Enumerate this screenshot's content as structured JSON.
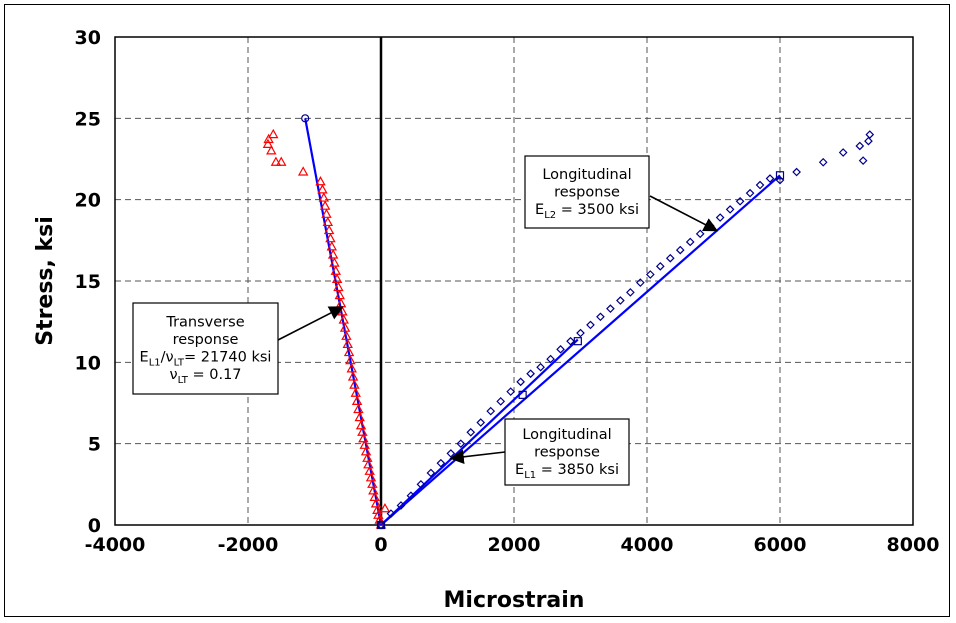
{
  "chart_data": {
    "type": "scatter",
    "xlabel": "Microstrain",
    "ylabel": "Stress, ksi",
    "xlim": [
      -4000,
      8000
    ],
    "ylim": [
      0,
      30
    ],
    "xticks": [
      "-4000",
      "-2000",
      "0",
      "2000",
      "4000",
      "6000",
      "8000"
    ],
    "yticks": [
      "0",
      "5",
      "10",
      "15",
      "20",
      "25",
      "30"
    ],
    "grid": true,
    "legend": "none",
    "colors": {
      "transverse": "#ff0000",
      "longitudinal": "#00008b",
      "fit": "#0000ff",
      "grid": "#555555"
    },
    "series": [
      {
        "marker": "triangle",
        "color": "#ff0000",
        "points": [
          [
            0,
            0
          ],
          [
            60,
            1.0
          ],
          [
            -20,
            0.3
          ],
          [
            -40,
            0.6
          ],
          [
            -55,
            0.9
          ],
          [
            -75,
            1.3
          ],
          [
            -95,
            1.7
          ],
          [
            -115,
            2.1
          ],
          [
            -130,
            2.5
          ],
          [
            -150,
            2.9
          ],
          [
            -170,
            3.3
          ],
          [
            -190,
            3.7
          ],
          [
            -205,
            4.1
          ],
          [
            -225,
            4.5
          ],
          [
            -245,
            4.9
          ],
          [
            -265,
            5.3
          ],
          [
            -280,
            5.7
          ],
          [
            -300,
            6.1
          ],
          [
            -320,
            6.6
          ],
          [
            -340,
            7.1
          ],
          [
            -360,
            7.6
          ],
          [
            -380,
            8.1
          ],
          [
            -400,
            8.6
          ],
          [
            -420,
            9.1
          ],
          [
            -440,
            9.6
          ],
          [
            -460,
            10.1
          ],
          [
            -480,
            10.6
          ],
          [
            -500,
            11.1
          ],
          [
            -520,
            11.6
          ],
          [
            -540,
            12.1
          ],
          [
            -560,
            12.6
          ],
          [
            -580,
            13.1
          ],
          [
            -600,
            13.6
          ],
          [
            -620,
            14.1
          ],
          [
            -640,
            14.6
          ],
          [
            -660,
            15.1
          ],
          [
            -680,
            15.6
          ],
          [
            -700,
            16.1
          ],
          [
            -720,
            16.6
          ],
          [
            -740,
            17.1
          ],
          [
            -760,
            17.6
          ],
          [
            -780,
            18.1
          ],
          [
            -800,
            18.6
          ],
          [
            -820,
            19.1
          ],
          [
            -840,
            19.6
          ],
          [
            -860,
            20.1
          ],
          [
            -880,
            20.6
          ],
          [
            -910,
            21.1
          ],
          [
            -1170,
            21.7
          ],
          [
            -1500,
            22.3
          ],
          [
            -1580,
            22.3
          ],
          [
            -1650,
            23.0
          ],
          [
            -1700,
            23.4
          ],
          [
            -1690,
            23.7
          ],
          [
            -1620,
            24.0
          ]
        ]
      },
      {
        "marker": "diamond",
        "color": "#00008b",
        "points": [
          [
            0,
            0
          ],
          [
            150,
            0.7
          ],
          [
            300,
            1.2
          ],
          [
            450,
            1.8
          ],
          [
            600,
            2.5
          ],
          [
            750,
            3.2
          ],
          [
            900,
            3.8
          ],
          [
            1050,
            4.4
          ],
          [
            1200,
            5.0
          ],
          [
            1350,
            5.7
          ],
          [
            1500,
            6.3
          ],
          [
            1650,
            7.0
          ],
          [
            1800,
            7.6
          ],
          [
            1950,
            8.2
          ],
          [
            2100,
            8.8
          ],
          [
            2250,
            9.3
          ],
          [
            2400,
            9.7
          ],
          [
            2550,
            10.2
          ],
          [
            2700,
            10.8
          ],
          [
            2850,
            11.3
          ],
          [
            3000,
            11.8
          ],
          [
            3150,
            12.3
          ],
          [
            3300,
            12.8
          ],
          [
            3450,
            13.3
          ],
          [
            3600,
            13.8
          ],
          [
            3750,
            14.3
          ],
          [
            3900,
            14.9
          ],
          [
            4050,
            15.4
          ],
          [
            4200,
            15.9
          ],
          [
            4350,
            16.4
          ],
          [
            4500,
            16.9
          ],
          [
            4650,
            17.4
          ],
          [
            4800,
            17.9
          ],
          [
            4950,
            18.4
          ],
          [
            5100,
            18.9
          ],
          [
            5250,
            19.4
          ],
          [
            5400,
            19.9
          ],
          [
            5550,
            20.4
          ],
          [
            5700,
            20.9
          ],
          [
            5850,
            21.3
          ],
          [
            6000,
            21.2
          ],
          [
            6250,
            21.7
          ],
          [
            6650,
            22.3
          ],
          [
            6950,
            22.9
          ],
          [
            7200,
            23.3
          ],
          [
            7330,
            23.6
          ],
          [
            7250,
            22.4
          ],
          [
            7350,
            24.0
          ]
        ]
      },
      {
        "marker": "square",
        "color": "#00008b",
        "points": [
          [
            0,
            0
          ],
          [
            2130,
            8.0
          ],
          [
            2960,
            11.3
          ],
          [
            6000,
            21.5
          ]
        ]
      },
      {
        "marker": "circle",
        "color": "#00008b",
        "points": [
          [
            0,
            0
          ],
          [
            -1140,
            25.0
          ]
        ]
      }
    ],
    "fit_lines": [
      {
        "color": "#0000ff",
        "points": [
          [
            -1140,
            25.0
          ],
          [
            0,
            0
          ]
        ]
      },
      {
        "color": "#0000ff",
        "points": [
          [
            0,
            0
          ],
          [
            2960,
            11.4
          ]
        ]
      },
      {
        "color": "#0000ff",
        "points": [
          [
            0,
            0
          ],
          [
            6000,
            21.5
          ]
        ]
      }
    ],
    "annotations": [
      {
        "lines": [
          {
            "text": "Longitudinal"
          },
          {
            "text": "response"
          },
          {
            "parts": [
              [
                "E",
                ""
              ],
              [
                "L2",
                "sub"
              ],
              [
                " = 3500 ksi",
                ""
              ]
            ]
          }
        ],
        "arrow_to": [
          5050,
          18.1
        ]
      },
      {
        "lines": [
          {
            "text": "Transverse"
          },
          {
            "text": "response"
          },
          {
            "parts": [
              [
                "E",
                ""
              ],
              [
                "L1",
                "sub"
              ],
              [
                "/ν",
                ""
              ],
              [
                "LT",
                "sub"
              ],
              [
                "= 21740 ksi",
                ""
              ]
            ]
          },
          {
            "parts": [
              [
                "ν",
                ""
              ],
              [
                "LT",
                "sub"
              ],
              [
                " = 0.17",
                ""
              ]
            ]
          }
        ],
        "arrow_to": [
          -580,
          13.4
        ]
      },
      {
        "lines": [
          {
            "text": "Longitudinal"
          },
          {
            "text": "response"
          },
          {
            "parts": [
              [
                "E",
                ""
              ],
              [
                "L1",
                "sub"
              ],
              [
                " = 3850 ksi",
                ""
              ]
            ]
          }
        ],
        "arrow_to": [
          1050,
          4.1
        ]
      }
    ]
  }
}
